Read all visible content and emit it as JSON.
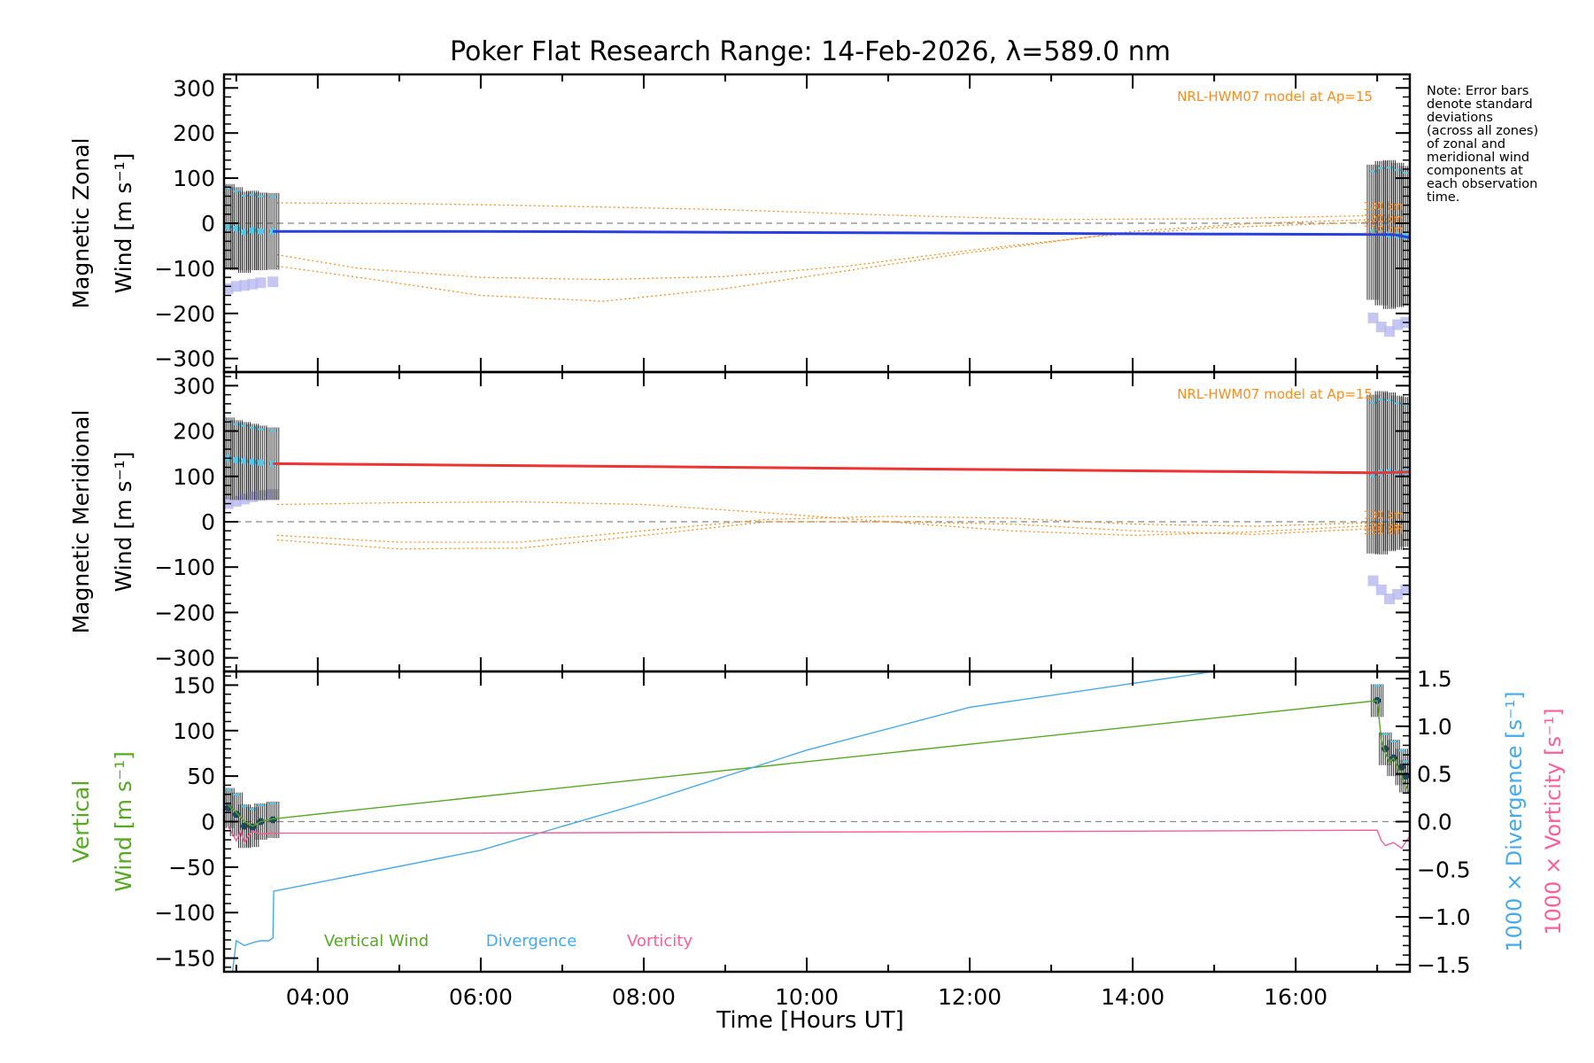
{
  "title": "Poker Flat Research Range: 14-Feb-2026, λ=589.0 nm",
  "note": [
    "Note: Error bars",
    "denote standard",
    "deviations",
    "(across all zones)",
    "of zonal and",
    "meridional wind",
    "components at",
    "each observation",
    "time."
  ],
  "colors": {
    "zonal": "#2a3fe0",
    "meridional": "#ee3333",
    "model": "#ff8c1a",
    "vertical": "#55aa22",
    "divergence": "#44aaee",
    "vorticity": "#ff5c9a",
    "errorbar": "#333333",
    "obs_light": "#55c8e8",
    "obs_spread": "#b8b8f0",
    "obs_dark": "#1b4a60"
  },
  "chart_data": [
    {
      "id": "zonal",
      "type": "line",
      "ylabel": [
        "Magnetic Zonal",
        "Wind [m s⁻¹]"
      ],
      "ylim": [
        -330,
        330
      ],
      "yticks": [
        300,
        200,
        100,
        0,
        -100,
        -200,
        -300
      ],
      "xlim": [
        2.85,
        17.4
      ],
      "model_label": "NRL-HWM07 model at Ap=15",
      "zero_line": true,
      "series": [
        {
          "name": "Magnetic Zonal Wind",
          "color_key": "zonal",
          "x": [
            3.45,
            6.0,
            9.0,
            12.0,
            15.0,
            17.2,
            17.4
          ],
          "values": [
            -18,
            -18,
            -20,
            -22,
            -24,
            -25,
            -32
          ]
        }
      ],
      "model_series": [
        {
          "name": "130 km",
          "x": [
            3.5,
            5.0,
            7.0,
            9.0,
            11.0,
            13.0,
            15.0,
            17.3
          ],
          "values": [
            45,
            44,
            38,
            30,
            18,
            8,
            10,
            18
          ]
        },
        {
          "name": "120 km",
          "x": [
            3.5,
            4.5,
            6.0,
            7.5,
            9.0,
            10.5,
            12.0,
            14.0,
            15.5,
            17.3
          ],
          "values": [
            -95,
            -120,
            -160,
            -173,
            -145,
            -105,
            -65,
            -18,
            0,
            10
          ]
        },
        {
          "name": "110 km",
          "x": [
            3.5,
            4.5,
            6.0,
            7.5,
            9.0,
            10.5,
            12.0,
            13.5,
            15.0,
            17.3
          ],
          "values": [
            -70,
            -100,
            -120,
            -125,
            -118,
            -95,
            -60,
            -30,
            -10,
            5
          ]
        }
      ],
      "observations": [
        {
          "x": [
            2.9,
            3.0,
            3.1,
            3.2,
            3.3,
            3.45
          ],
          "mean": [
            -8,
            -12,
            -20,
            -16,
            -18,
            -18
          ],
          "sd": [
            95,
            92,
            90,
            88,
            86,
            85
          ],
          "spread": [
            -145,
            -140,
            -138,
            -135,
            -132,
            -130
          ]
        },
        {
          "x": [
            16.95,
            17.05,
            17.15,
            17.25,
            17.35
          ],
          "mean": [
            -20,
            -22,
            -25,
            -26,
            -28
          ],
          "sd": [
            150,
            160,
            165,
            160,
            155
          ],
          "spread": [
            -210,
            -230,
            -240,
            -225,
            -220
          ]
        }
      ]
    },
    {
      "id": "meridional",
      "type": "line",
      "ylabel": [
        "Magnetic Meridional",
        "Wind [m s⁻¹]"
      ],
      "ylim": [
        -330,
        330
      ],
      "yticks": [
        300,
        200,
        100,
        0,
        -100,
        -200,
        -300
      ],
      "xlim": [
        2.85,
        17.4
      ],
      "model_label": "NRL-HWM07 model at Ap=15",
      "zero_line": true,
      "series": [
        {
          "name": "Magnetic Meridional Wind",
          "color_key": "meridional",
          "x": [
            3.45,
            5.0,
            7.0,
            9.0,
            11.0,
            13.0,
            15.0,
            17.0,
            17.4
          ],
          "values": [
            128,
            126,
            123,
            120,
            117,
            114,
            111,
            108,
            110
          ]
        }
      ],
      "model_series": [
        {
          "name": "130 km",
          "x": [
            3.5,
            5.0,
            6.5,
            8.0,
            9.5,
            11.0,
            12.5,
            14.0,
            15.5,
            17.3
          ],
          "values": [
            38,
            42,
            44,
            38,
            20,
            0,
            -20,
            -30,
            -22,
            -5
          ]
        },
        {
          "name": "120 km",
          "x": [
            3.5,
            5.0,
            6.5,
            8.0,
            9.5,
            11.0,
            12.5,
            14.0,
            15.5,
            17.3
          ],
          "values": [
            -40,
            -60,
            -58,
            -30,
            0,
            0,
            -5,
            -20,
            -28,
            -12
          ]
        },
        {
          "name": "110 km",
          "x": [
            3.5,
            5.0,
            6.5,
            8.0,
            9.5,
            11.0,
            12.5,
            14.0,
            15.5,
            17.3
          ],
          "values": [
            -30,
            -45,
            -45,
            -20,
            5,
            12,
            8,
            -5,
            -10,
            0
          ]
        }
      ],
      "observations": [
        {
          "x": [
            2.9,
            3.0,
            3.1,
            3.2,
            3.3,
            3.45
          ],
          "mean": [
            140,
            136,
            134,
            132,
            130,
            128
          ],
          "sd": [
            90,
            88,
            86,
            84,
            82,
            80
          ],
          "spread": [
            40,
            45,
            50,
            55,
            58,
            60
          ]
        },
        {
          "x": [
            16.95,
            17.05,
            17.15,
            17.25,
            17.35
          ],
          "mean": [
            105,
            108,
            110,
            108,
            110
          ],
          "sd": [
            175,
            180,
            175,
            170,
            165
          ],
          "spread": [
            -130,
            -150,
            -170,
            -160,
            -150
          ]
        }
      ]
    },
    {
      "id": "vertical",
      "type": "line",
      "ylabel_left": [
        "Vertical",
        "Wind [m s⁻¹]"
      ],
      "ylabel_right": [
        "1000 × Divergence [s⁻¹]",
        "1000 × Vorticity [s⁻¹]"
      ],
      "ylim": [
        -165,
        165
      ],
      "yticks": [
        150,
        100,
        50,
        0,
        -50,
        -100,
        -150
      ],
      "ylim_right": [
        -1.575,
        1.575
      ],
      "yticks_right": [
        1.5,
        1.0,
        0.5,
        0.0,
        -0.5,
        -1.0,
        -1.5
      ],
      "right_tick_labels": [
        "1.5",
        "1.0",
        "0.5",
        "0.0",
        "−0.5",
        "−1.0",
        "−1.5"
      ],
      "xlim": [
        2.85,
        17.4
      ],
      "xlabel": "Time [Hours UT]",
      "xticks": [
        4,
        6,
        8,
        10,
        12,
        14,
        16
      ],
      "xtick_labels": [
        "04:00",
        "06:00",
        "08:00",
        "10:00",
        "12:00",
        "14:00",
        "16:00"
      ],
      "zero_line": true,
      "series": [
        {
          "name": "Vertical Wind",
          "color_key": "vertical",
          "axis": "left",
          "x": [
            2.9,
            3.0,
            3.1,
            3.2,
            3.3,
            3.4,
            3.45,
            17.0,
            17.05,
            17.1,
            17.15,
            17.2,
            17.25,
            17.3,
            17.35,
            17.4
          ],
          "values": [
            18,
            10,
            0,
            -5,
            0,
            2,
            3,
            133,
            90,
            75,
            65,
            70,
            60,
            50,
            40,
            30
          ]
        },
        {
          "name": "Divergence",
          "color_key": "divergence",
          "axis": "right",
          "x": [
            2.95,
            3.0,
            3.1,
            3.2,
            3.3,
            3.4,
            3.45,
            3.46,
            6.0,
            8.0,
            10.0,
            12.0,
            14.0,
            15.2
          ],
          "values": [
            -1.6,
            -1.25,
            -1.3,
            -1.27,
            -1.25,
            -1.25,
            -1.22,
            -0.73,
            -0.3,
            0.2,
            0.75,
            1.2,
            1.45,
            1.6
          ]
        },
        {
          "name": "Vorticity",
          "color_key": "vorticity",
          "axis": "right",
          "x": [
            2.9,
            3.0,
            3.05,
            3.1,
            3.15,
            3.2,
            3.3,
            3.45,
            6.0,
            10.0,
            14.0,
            17.0,
            17.05,
            17.1,
            17.2,
            17.3,
            17.4
          ],
          "values": [
            -0.05,
            -0.2,
            -0.1,
            -0.22,
            -0.15,
            -0.1,
            -0.13,
            -0.12,
            -0.12,
            -0.11,
            -0.1,
            -0.09,
            -0.2,
            -0.25,
            -0.22,
            -0.28,
            -0.15
          ]
        }
      ],
      "legend": [
        {
          "label": "Vertical Wind",
          "color_key": "vertical"
        },
        {
          "label": "Divergence",
          "color_key": "divergence"
        },
        {
          "label": "Vorticity",
          "color_key": "vorticity"
        }
      ],
      "observations": [
        {
          "x": [
            2.9,
            3.0,
            3.1,
            3.2,
            3.3,
            3.45
          ],
          "mean": [
            15,
            8,
            -5,
            -6,
            0,
            2
          ],
          "sd": [
            22,
            24,
            24,
            22,
            20,
            20
          ]
        },
        {
          "x": [
            17.0,
            17.1,
            17.2,
            17.3,
            17.35
          ],
          "mean": [
            133,
            80,
            70,
            60,
            50
          ],
          "sd": [
            18,
            18,
            20,
            20,
            18
          ]
        }
      ]
    }
  ]
}
